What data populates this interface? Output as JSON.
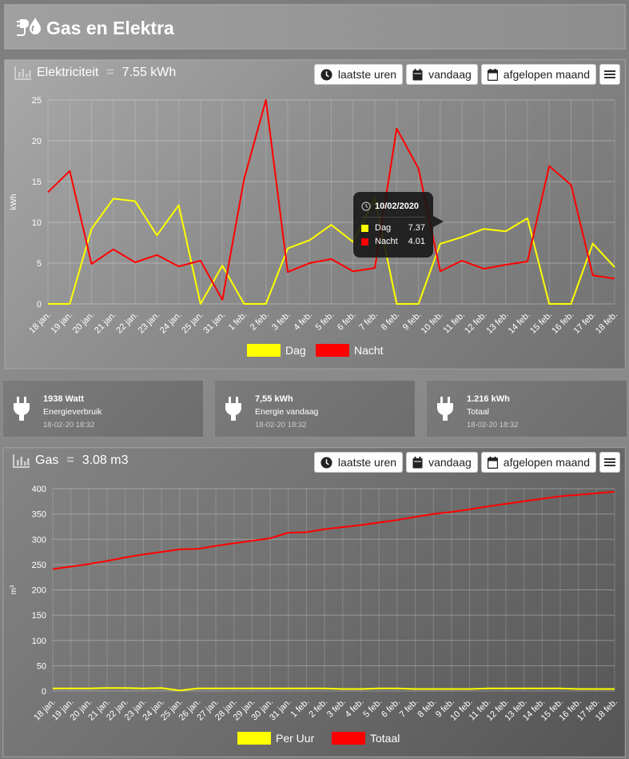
{
  "page": {
    "title": "Gas en Elektra"
  },
  "elec": {
    "title": "Elektriciteit",
    "value": "7.55 kWh",
    "buttons": {
      "recent": "laatste uren",
      "today": "vandaag",
      "month": "afgelopen maand"
    }
  },
  "gas": {
    "title": "Gas",
    "value": "3.08 m3",
    "buttons": {
      "recent": "laatste uren",
      "today": "vandaag",
      "month": "afgelopen maand"
    }
  },
  "tooltip": {
    "date": "10/02/2020",
    "rows": [
      {
        "name": "Dag",
        "value": "7.37",
        "color": "#ffff00"
      },
      {
        "name": "Nacht",
        "value": "4.01",
        "color": "#ff0000"
      }
    ]
  },
  "info": [
    {
      "value": "1938 Watt",
      "label": "Energieverbruik",
      "time": "18-02-20 18:32"
    },
    {
      "value": "7,55 kWh",
      "label": "Energie vandaag",
      "time": "18-02-20 18:32"
    },
    {
      "value": "1.216 kWh",
      "label": "Totaal",
      "time": "18-02-20 18:32"
    }
  ],
  "colors": {
    "dag": "#ffff00",
    "nacht": "#ff0000",
    "per_uur": "#ffff00",
    "totaal": "#ff0000"
  },
  "icons": [
    "plug-drop-icon",
    "bar-chart-icon",
    "clock-icon",
    "calendar-icon",
    "menu-icon",
    "plug-icon"
  ],
  "chart_data": [
    {
      "type": "line",
      "ylabel": "kWh",
      "ylim": [
        0,
        25
      ],
      "yticks": [
        0,
        5,
        10,
        15,
        20,
        25
      ],
      "grid": true,
      "legend_position": "bottom",
      "categories": [
        "18 jan.",
        "19 jan.",
        "20 jan.",
        "21 jan.",
        "22 jan.",
        "23 jan.",
        "24 jan.",
        "25 jan.",
        "31 jan.",
        "1 feb.",
        "2 feb.",
        "3 feb.",
        "4 feb.",
        "5 feb.",
        "6 feb.",
        "7 feb.",
        "8 feb.",
        "9 feb.",
        "10 feb.",
        "11 feb.",
        "12 feb.",
        "13 feb.",
        "14 feb.",
        "15 feb.",
        "16 feb.",
        "17 feb.",
        "18 feb."
      ],
      "series": [
        {
          "name": "Dag",
          "color": "#ffff00",
          "values": [
            0,
            0,
            9.2,
            12.9,
            12.6,
            8.4,
            12.1,
            0,
            4.7,
            0,
            0,
            6.8,
            7.8,
            9.7,
            7.6,
            12.9,
            0,
            0,
            7.37,
            8.2,
            9.2,
            8.9,
            10.5,
            0,
            0,
            7.4,
            4.5
          ]
        },
        {
          "name": "Nacht",
          "color": "#ff0000",
          "values": [
            13.7,
            16.3,
            4.9,
            6.7,
            5.1,
            6.0,
            4.6,
            5.3,
            0.5,
            15.3,
            25.0,
            3.9,
            5.0,
            5.5,
            4.0,
            4.4,
            21.5,
            16.6,
            4.01,
            5.3,
            4.3,
            4.8,
            5.2,
            16.9,
            14.6,
            3.5,
            3.1
          ]
        }
      ]
    },
    {
      "type": "line",
      "ylabel": "m³",
      "ylim": [
        0,
        400
      ],
      "yticks": [
        0,
        50,
        100,
        150,
        200,
        250,
        300,
        350,
        400
      ],
      "grid": true,
      "legend_position": "bottom",
      "categories": [
        "18 jan.",
        "19 jan.",
        "20 jan.",
        "21 jan.",
        "22 jan.",
        "23 jan.",
        "24 jan.",
        "25 jan.",
        "26 jan.",
        "27 jan.",
        "28 jan.",
        "29 jan.",
        "30 jan.",
        "31 jan.",
        "1 feb.",
        "2 feb.",
        "3 feb.",
        "4 feb.",
        "5 feb.",
        "6 feb.",
        "7 feb.",
        "8 feb.",
        "9 feb.",
        "10 feb.",
        "11 feb.",
        "12 feb.",
        "13 feb.",
        "14 feb.",
        "15 feb.",
        "16 feb.",
        "17 feb.",
        "18 feb."
      ],
      "series": [
        {
          "name": "Per Uur",
          "color": "#ffff00",
          "values": [
            5,
            5,
            5,
            6,
            6,
            5,
            6,
            1,
            5,
            5,
            5,
            5,
            5,
            5,
            5,
            5,
            4,
            4,
            5,
            5,
            4,
            4,
            4,
            4,
            5,
            5,
            5,
            5,
            5,
            4,
            4,
            4
          ]
        },
        {
          "name": "Totaal",
          "color": "#ff0000",
          "values": [
            241,
            246,
            251,
            257,
            264,
            270,
            275,
            280,
            281,
            287,
            292,
            297,
            302,
            313,
            314,
            320,
            324,
            328,
            333,
            338,
            344,
            350,
            354,
            359,
            365,
            370,
            375,
            380,
            385,
            388,
            391,
            394
          ]
        }
      ]
    }
  ]
}
